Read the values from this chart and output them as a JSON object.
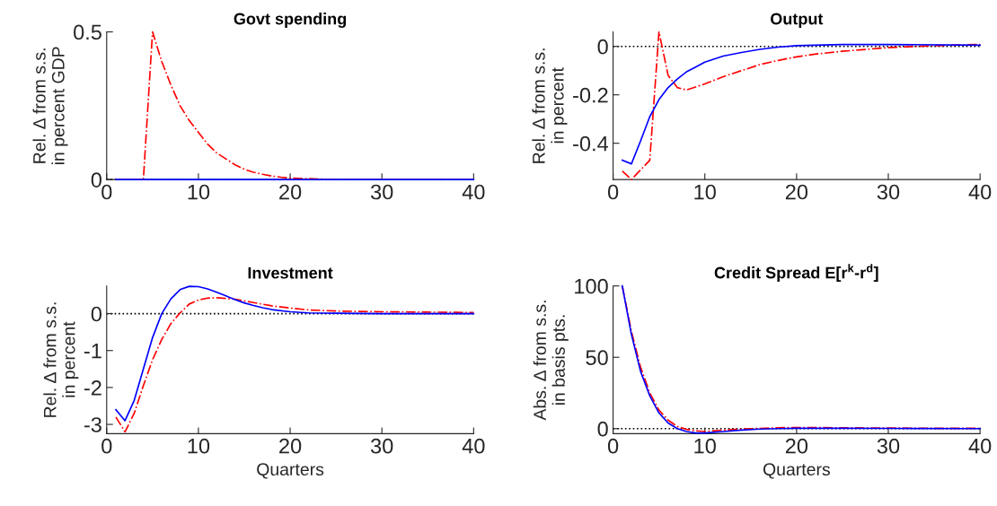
{
  "chart_data": [
    {
      "type": "line",
      "title": "Govt spending",
      "ylabel": "Rel. Δ from s.s.\nin percent GDP",
      "xlim": [
        0,
        40
      ],
      "xticks": [
        0,
        10,
        20,
        30,
        40
      ],
      "ylim": [
        0,
        0.5
      ],
      "yticks": [
        0,
        0.5
      ],
      "grid": false,
      "legend": false,
      "ref_lines": [
        {
          "axis": "y",
          "value": 0,
          "color": "#000000",
          "line_style": "dotted"
        }
      ],
      "series": [
        {
          "x": [
            1,
            2,
            3,
            4,
            5,
            6,
            7,
            8,
            9,
            10,
            11,
            12,
            13,
            14,
            15,
            16,
            17,
            18,
            19,
            20,
            25,
            30,
            40
          ],
          "values": [
            0,
            0,
            0,
            0,
            0.5,
            0.4,
            0.32,
            0.25,
            0.2,
            0.16,
            0.12,
            0.09,
            0.07,
            0.05,
            0.035,
            0.025,
            0.018,
            0.012,
            0.008,
            0.005,
            0,
            0,
            0
          ],
          "color": "#ff0000",
          "line_style": "dashdot"
        },
        {
          "x": [
            1,
            40
          ],
          "values": [
            0,
            0
          ],
          "color": "#0000ff",
          "line_style": "solid"
        }
      ]
    },
    {
      "type": "line",
      "title": "Output",
      "ylabel": "Rel. Δ from s.s.\nin percent",
      "xlim": [
        0,
        40
      ],
      "xticks": [
        0,
        10,
        20,
        30,
        40
      ],
      "ylim": [
        -0.55,
        0.06
      ],
      "yticks": [
        -0.4,
        -0.2,
        0
      ],
      "grid": false,
      "legend": false,
      "ref_lines": [
        {
          "axis": "y",
          "value": 0,
          "color": "#000000",
          "line_style": "dotted"
        }
      ],
      "series": [
        {
          "x": [
            1,
            2,
            3,
            4,
            5,
            6,
            7,
            8,
            10,
            12,
            14,
            16,
            18,
            20,
            22,
            25,
            30,
            35,
            40
          ],
          "values": [
            -0.515,
            -0.55,
            -0.51,
            -0.47,
            0.06,
            -0.12,
            -0.17,
            -0.18,
            -0.155,
            -0.125,
            -0.1,
            -0.075,
            -0.058,
            -0.043,
            -0.032,
            -0.02,
            -0.005,
            0.003,
            0.008
          ],
          "color": "#ff0000",
          "line_style": "dashdot"
        },
        {
          "x": [
            1,
            2,
            3,
            4,
            5,
            6,
            7,
            8,
            9,
            10,
            12,
            14,
            16,
            18,
            20,
            25,
            30,
            40
          ],
          "values": [
            -0.47,
            -0.485,
            -0.39,
            -0.29,
            -0.22,
            -0.17,
            -0.135,
            -0.105,
            -0.085,
            -0.065,
            -0.04,
            -0.025,
            -0.012,
            -0.003,
            0.003,
            0.008,
            0.008,
            0.005
          ],
          "color": "#0000ff",
          "line_style": "solid"
        }
      ]
    },
    {
      "type": "line",
      "title": "Investment",
      "xlabel": "Quarters",
      "ylabel": "Rel. Δ from s.s.\nin percent",
      "xlim": [
        0,
        40
      ],
      "xticks": [
        0,
        10,
        20,
        30,
        40
      ],
      "ylim": [
        -3.25,
        0.75
      ],
      "yticks": [
        {
          "value": -3,
          "label": "-3"
        },
        {
          "value": -2,
          "label": "-2"
        },
        {
          "value": -1,
          "label": "-1"
        },
        0
      ],
      "grid": false,
      "legend": false,
      "ref_lines": [
        {
          "axis": "y",
          "value": 0,
          "color": "#000000",
          "line_style": "dotted"
        }
      ],
      "series": [
        {
          "x": [
            1,
            2,
            3,
            4,
            5,
            6,
            7,
            8,
            9,
            10,
            11,
            12,
            14,
            16,
            18,
            20,
            22,
            25,
            30,
            35,
            40
          ],
          "values": [
            -2.8,
            -3.2,
            -2.7,
            -1.95,
            -1.25,
            -0.7,
            -0.27,
            0.02,
            0.26,
            0.37,
            0.42,
            0.43,
            0.39,
            0.3,
            0.21,
            0.15,
            0.1,
            0.07,
            0.05,
            0.04,
            0.03
          ],
          "color": "#ff0000",
          "line_style": "dashdot"
        },
        {
          "x": [
            1,
            2,
            3,
            4,
            5,
            6,
            7,
            8,
            9,
            10,
            11,
            12,
            13,
            14,
            15,
            16,
            17,
            18,
            20,
            22,
            25,
            30,
            40
          ],
          "values": [
            -2.6,
            -2.9,
            -2.35,
            -1.5,
            -0.65,
            0,
            0.4,
            0.65,
            0.74,
            0.73,
            0.67,
            0.58,
            0.48,
            0.38,
            0.29,
            0.22,
            0.16,
            0.11,
            0.05,
            0.02,
            0.01,
            0,
            0
          ],
          "color": "#0000ff",
          "line_style": "solid"
        }
      ]
    },
    {
      "type": "line",
      "title": "Credit Spread E[r$^{k}$-r$^{d}$]",
      "xlabel": "Quarters",
      "ylabel": "Abs. Δ from s.s.\nin basis pts.",
      "xlim": [
        0,
        40
      ],
      "xticks": [
        0,
        10,
        20,
        30,
        40
      ],
      "ylim": [
        -3.5,
        100
      ],
      "yticks": [
        0,
        50,
        100
      ],
      "grid": false,
      "legend": false,
      "ref_lines": [
        {
          "axis": "y",
          "value": 0,
          "color": "#000000",
          "line_style": "dotted"
        }
      ],
      "series": [
        {
          "x": [
            1,
            2,
            3,
            4,
            5,
            6,
            7,
            8,
            9,
            10,
            12,
            14,
            16,
            18,
            20,
            25,
            30,
            40
          ],
          "values": [
            100,
            68,
            43,
            25,
            13,
            6,
            1.5,
            -0.5,
            -1.5,
            -2,
            -1,
            -0.3,
            0.2,
            0.6,
            0.8,
            0.6,
            0.4,
            0.2
          ],
          "color": "#ff0000",
          "line_style": "dashdot"
        },
        {
          "x": [
            1,
            2,
            3,
            4,
            5,
            6,
            7,
            8,
            9,
            10,
            12,
            14,
            16,
            18,
            20,
            25,
            30,
            40
          ],
          "values": [
            100,
            66,
            40,
            23,
            11,
            4,
            0,
            -2,
            -3,
            -3,
            -2,
            -1,
            -0.3,
            0,
            0.3,
            0.3,
            0.2,
            0
          ],
          "color": "#0000ff",
          "line_style": "solid"
        }
      ]
    }
  ]
}
